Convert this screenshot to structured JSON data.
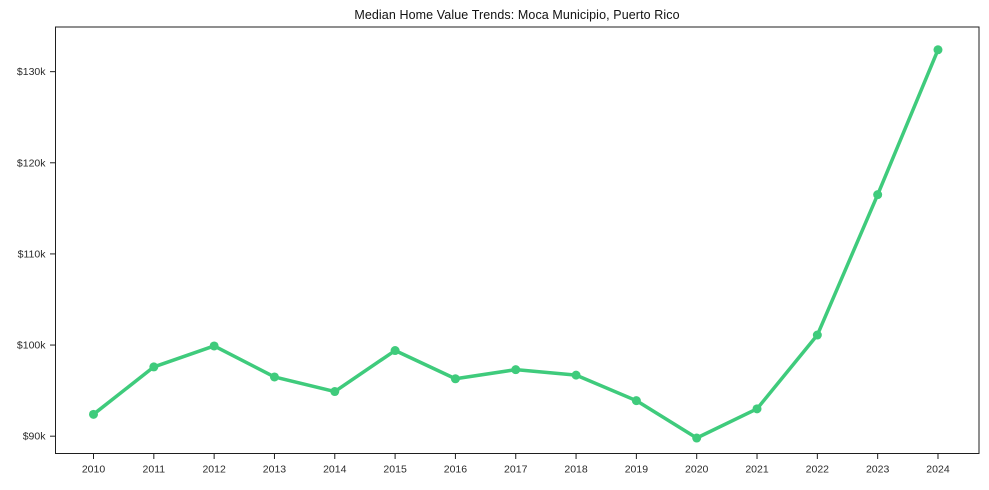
{
  "chart_data": {
    "type": "line",
    "title": "Median Home Value Trends: Moca Municipio, Puerto Rico",
    "xlabel": "",
    "ylabel": "",
    "x": [
      2010,
      2011,
      2012,
      2013,
      2014,
      2015,
      2016,
      2017,
      2018,
      2019,
      2020,
      2021,
      2022,
      2023,
      2024
    ],
    "series": [
      {
        "name": "median-home-value",
        "values_k_usd": [
          92.4,
          97.6,
          99.9,
          96.5,
          94.9,
          99.4,
          96.3,
          97.3,
          96.7,
          93.9,
          89.8,
          93.0,
          101.1,
          116.5,
          132.4
        ],
        "color": "#3fcb7c"
      }
    ],
    "xticks": [
      {
        "value": 2010,
        "label": "2010"
      },
      {
        "value": 2011,
        "label": "2011"
      },
      {
        "value": 2012,
        "label": "2012"
      },
      {
        "value": 2013,
        "label": "2013"
      },
      {
        "value": 2014,
        "label": "2014"
      },
      {
        "value": 2015,
        "label": "2015"
      },
      {
        "value": 2016,
        "label": "2016"
      },
      {
        "value": 2017,
        "label": "2017"
      },
      {
        "value": 2018,
        "label": "2018"
      },
      {
        "value": 2019,
        "label": "2019"
      },
      {
        "value": 2020,
        "label": "2020"
      },
      {
        "value": 2021,
        "label": "2021"
      },
      {
        "value": 2022,
        "label": "2022"
      },
      {
        "value": 2023,
        "label": "2023"
      },
      {
        "value": 2024,
        "label": "2024"
      }
    ],
    "yticks": [
      {
        "value": 90,
        "label": "$90k"
      },
      {
        "value": 100,
        "label": "$100k"
      },
      {
        "value": 110,
        "label": "$110k"
      },
      {
        "value": 120,
        "label": "$120k"
      },
      {
        "value": 130,
        "label": "$130k"
      }
    ],
    "xlim": [
      2009.37,
      2024.68
    ],
    "ylim": [
      88.1,
      134.9
    ],
    "grid": false,
    "legend_position": "none",
    "marker": "circle",
    "axis_color": "#1f1f1f",
    "text_color": "#2b2b2b",
    "background_color": "#ffffff"
  }
}
